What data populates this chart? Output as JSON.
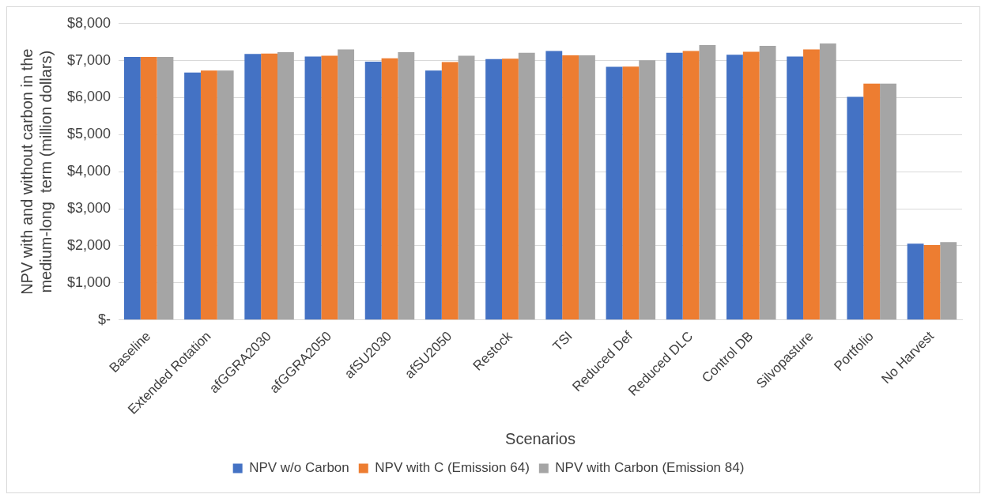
{
  "chart_data": {
    "type": "bar",
    "xlabel": "Scenarios",
    "ylabel": "NPV with and without carbon in the medium-long  term (million dollars)",
    "categories": [
      "Baseline",
      "Extended Rotation",
      "afGGRA2030",
      "afGGRA2050",
      "afSU2030",
      "afSU2050",
      "Restock",
      "TSI",
      "Reduced Def",
      "Reduced DLC",
      "Control DB",
      "Silvopasture",
      "Portfolio",
      "No Harvest"
    ],
    "series": [
      {
        "name": "NPV w/o Carbon",
        "color": "#4472c4",
        "values": [
          7100,
          6680,
          7180,
          7110,
          6970,
          6730,
          7040,
          7260,
          6830,
          7210,
          7160,
          7110,
          6020,
          2060
        ]
      },
      {
        "name": "NPV with C (Emission 64)",
        "color": "#ed7d31",
        "values": [
          7100,
          6730,
          7190,
          7130,
          7060,
          6960,
          7050,
          7140,
          6840,
          7260,
          7240,
          7300,
          6380,
          2020
        ]
      },
      {
        "name": "NPV with Carbon (Emission 84)",
        "color": "#a5a5a5",
        "values": [
          7100,
          6730,
          7230,
          7300,
          7230,
          7130,
          7210,
          7140,
          7010,
          7420,
          7400,
          7460,
          6380,
          2100
        ]
      }
    ],
    "ylim": [
      0,
      8000
    ],
    "yticks": [
      {
        "value": 0,
        "label": "$-"
      },
      {
        "value": 1000,
        "label": "$1,000"
      },
      {
        "value": 2000,
        "label": "$2,000"
      },
      {
        "value": 3000,
        "label": "$3,000"
      },
      {
        "value": 4000,
        "label": "$4,000"
      },
      {
        "value": 5000,
        "label": "$5,000"
      },
      {
        "value": 6000,
        "label": "$6,000"
      },
      {
        "value": 7000,
        "label": "$7,000"
      },
      {
        "value": 8000,
        "label": "$8,000"
      }
    ],
    "grid": "y",
    "legend": "bottom"
  }
}
